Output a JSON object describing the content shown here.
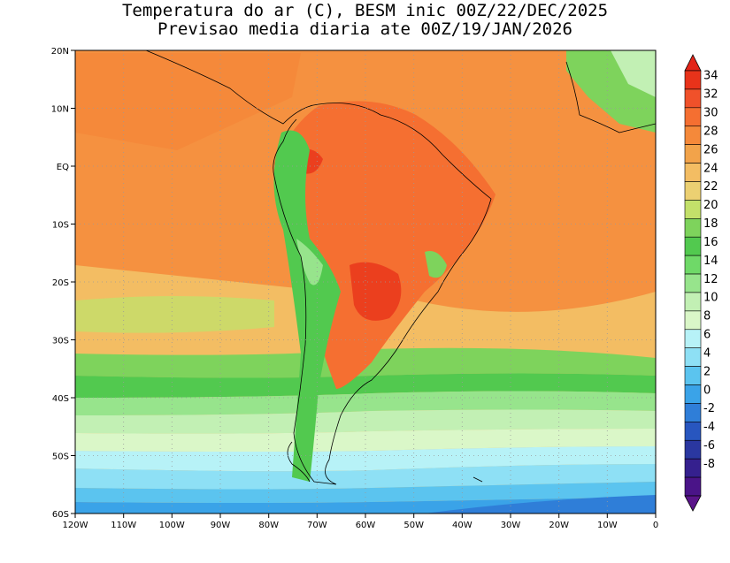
{
  "title": {
    "line1": "Temperatura do ar (C), BESM inic 00Z/22/DEC/2025",
    "line2": "Previsao media diaria ate 00Z/19/JAN/2026"
  },
  "axes": {
    "lat_ticks": [
      "20N",
      "10N",
      "EQ",
      "10S",
      "20S",
      "30S",
      "40S",
      "50S",
      "60S"
    ],
    "lon_ticks": [
      "120W",
      "110W",
      "100W",
      "90W",
      "80W",
      "70W",
      "60W",
      "50W",
      "40W",
      "30W",
      "20W",
      "10W",
      "0"
    ]
  },
  "colorbar": {
    "labels": [
      "34",
      "32",
      "30",
      "28",
      "26",
      "24",
      "22",
      "20",
      "18",
      "16",
      "14",
      "12",
      "10",
      "8",
      "6",
      "4",
      "2",
      "0",
      "-2",
      "-4",
      "-6",
      "-8"
    ],
    "colors": [
      "#e8331a",
      "#f0512a",
      "#f56f31",
      "#f5893a",
      "#f2a34a",
      "#f3bd63",
      "#ecd072",
      "#c3e06a",
      "#7ed35c",
      "#52c94f",
      "#6fd968",
      "#97e48c",
      "#c2f0b4",
      "#daf7c8",
      "#b7f2f7",
      "#8ee0f5",
      "#5bc4ef",
      "#3aa3e8",
      "#2f7ed8",
      "#2856bf",
      "#2a37a0",
      "#35208e",
      "#4a1488"
    ],
    "top_arrow_color": "#e32418",
    "bottom_arrow_color": "#5a148a"
  },
  "map_style": {
    "ocean_background": "#f2b05a",
    "grid_color": "#9a9a9a",
    "coast_color": "#000000"
  }
}
